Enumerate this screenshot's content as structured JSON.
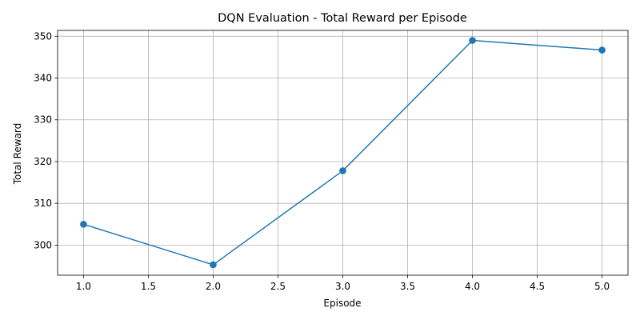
{
  "chart_data": {
    "type": "line",
    "title": "DQN Evaluation - Total Reward per Episode",
    "xlabel": "Episode",
    "ylabel": "Total Reward",
    "xlim": [
      0.8,
      5.2
    ],
    "ylim": [
      292.8,
      351.4
    ],
    "x_ticks": [
      1.0,
      1.5,
      2.0,
      2.5,
      3.0,
      3.5,
      4.0,
      4.5,
      5.0
    ],
    "x_tick_labels": [
      "1.0",
      "1.5",
      "2.0",
      "2.5",
      "3.0",
      "3.5",
      "4.0",
      "4.5",
      "5.0"
    ],
    "y_ticks": [
      300,
      310,
      320,
      330,
      340,
      350
    ],
    "y_tick_labels": [
      "300",
      "310",
      "320",
      "330",
      "340",
      "350"
    ],
    "grid": true,
    "legend": "none",
    "series": [
      {
        "x": [
          1,
          2,
          3,
          4,
          5
        ],
        "values": [
          305.0,
          295.3,
          317.8,
          349.0,
          346.7
        ],
        "color": "#1f77b4",
        "marker": "circle"
      }
    ]
  }
}
